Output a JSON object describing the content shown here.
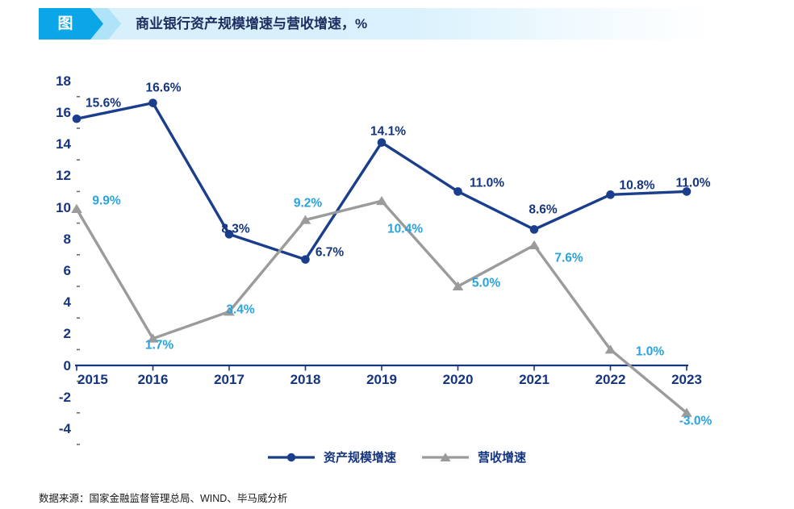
{
  "header": {
    "tag_label": "图",
    "title": "商业银行资产规模增速与营收增速，%"
  },
  "chart_data": {
    "type": "line",
    "title": "商业银行资产规模增速与营收增速，%",
    "categories": [
      "2015",
      "2016",
      "2017",
      "2018",
      "2019",
      "2020",
      "2021",
      "2022",
      "2023"
    ],
    "series": [
      {
        "name": "资产规模增速",
        "marker": "circle",
        "line_color": "#1a3e8c",
        "label_color": "#16357f",
        "values": [
          15.6,
          16.6,
          8.3,
          6.7,
          14.1,
          11.0,
          8.6,
          10.8,
          11.0
        ],
        "labels": [
          "15.6%",
          "16.6%",
          "8.3%",
          "6.7%",
          "14.1%",
          "11.0%",
          "8.6%",
          "10.8%",
          "11.0%"
        ]
      },
      {
        "name": "营收增速",
        "marker": "triangle",
        "line_color": "#9b9b9b",
        "label_color": "#29a3dc",
        "values": [
          9.9,
          1.7,
          3.4,
          9.2,
          10.4,
          5.0,
          7.6,
          1.0,
          -3.0
        ],
        "labels": [
          "9.9%",
          "1.7%",
          "3.4%",
          "9.2%",
          "10.4%",
          "5.0%",
          "7.6%",
          "1.0%",
          "-3.0%"
        ]
      }
    ],
    "y_axis": {
      "ticks": [
        18,
        16,
        14,
        12,
        10,
        8,
        6,
        4,
        2,
        0,
        -2,
        -4
      ],
      "minor_ticks": [
        17,
        15,
        13,
        11,
        9,
        7,
        5,
        3,
        1,
        -1,
        -3,
        -5
      ],
      "range": [
        -4,
        18
      ],
      "unit": "%"
    },
    "x_axis": {
      "ticks": [
        "2015",
        "2016",
        "2017",
        "2018",
        "2019",
        "2020",
        "2021",
        "2022",
        "2023"
      ]
    },
    "legend_position": "bottom",
    "grid": false
  },
  "footer": {
    "source": "数据来源：国家金融监督管理总局、WIND、毕马威分析"
  },
  "colors": {
    "accent_blue": "#0ba6e8",
    "chevron_light": "#aee3f8",
    "bar_bg": "#d7f0fb",
    "navy_text": "#16357f",
    "title_text": "#1b2e5f",
    "axis": "#16357f",
    "minor_tick": "#6b6b6b",
    "series1_line": "#1a3e8c",
    "series2_line": "#9b9b9b",
    "series2_label": "#29a3dc"
  }
}
